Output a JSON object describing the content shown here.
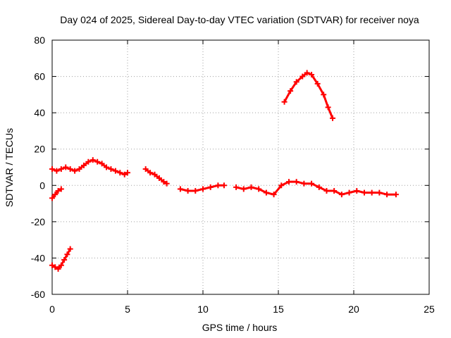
{
  "chart_data": {
    "type": "scatter",
    "title": "Day 024 of 2025, Sidereal Day-to-day VTEC variation (SDTVAR) for receiver noya",
    "xlabel": "GPS time / hours",
    "ylabel": "SDTVAR / TECUs",
    "xlim": [
      0,
      25
    ],
    "ylim": [
      -60,
      80
    ],
    "xticks": [
      0,
      5,
      10,
      15,
      20,
      25
    ],
    "yticks": [
      -60,
      -40,
      -20,
      0,
      20,
      40,
      60,
      80
    ],
    "xtick_labels": [
      "0",
      "5",
      "10",
      "15",
      "20",
      "25"
    ],
    "ytick_labels": [
      "-60",
      "-40",
      "-20",
      "0",
      "20",
      "40",
      "60",
      "80"
    ],
    "grid": true,
    "marker": "plus",
    "color": "#ff0000",
    "series": [
      {
        "name": "segment-1",
        "x": [
          0.0,
          0.2,
          0.4,
          0.6
        ],
        "y": [
          -7,
          -5,
          -3,
          -2
        ]
      },
      {
        "name": "segment-2",
        "x": [
          0.0,
          0.2,
          0.4,
          0.6,
          0.8,
          1.0,
          1.2
        ],
        "y": [
          -44,
          -45,
          -46,
          -44,
          -41,
          -38,
          -35
        ]
      },
      {
        "name": "segment-3",
        "x": [
          0.0,
          0.3,
          0.6,
          0.9,
          1.2,
          1.5,
          1.8,
          2.1,
          2.4,
          2.7,
          3.0,
          3.3,
          3.6,
          3.9,
          4.2,
          4.5,
          4.8,
          5.0
        ],
        "y": [
          9,
          8,
          9,
          10,
          9,
          8,
          9,
          11,
          13,
          14,
          13,
          12,
          10,
          9,
          8,
          7,
          6,
          7
        ]
      },
      {
        "name": "segment-4",
        "x": [
          6.2,
          6.5,
          6.8,
          7.1,
          7.4,
          7.6
        ],
        "y": [
          9,
          7,
          6,
          4,
          2,
          1
        ]
      },
      {
        "name": "segment-5",
        "x": [
          8.5,
          9.0,
          9.5,
          10.0,
          10.5,
          11.0,
          11.4
        ],
        "y": [
          -2,
          -3,
          -3,
          -2,
          -1,
          0,
          0
        ]
      },
      {
        "name": "segment-6",
        "x": [
          12.2,
          12.7,
          13.2,
          13.7,
          14.2,
          14.7,
          15.2,
          15.7,
          16.2,
          16.7,
          17.2,
          17.7,
          18.2,
          18.7,
          19.2,
          19.7,
          20.2,
          20.7,
          21.2,
          21.7,
          22.2,
          22.8
        ],
        "y": [
          -1,
          -2,
          -1,
          -2,
          -4,
          -5,
          0,
          2,
          2,
          1,
          1,
          -1,
          -3,
          -3,
          -5,
          -4,
          -3,
          -4,
          -4,
          -4,
          -5,
          -5
        ]
      },
      {
        "name": "segment-7",
        "x": [
          15.4,
          15.8,
          16.2,
          16.6,
          16.9,
          17.2,
          17.6,
          18.0,
          18.3,
          18.6
        ],
        "y": [
          46,
          52,
          57,
          60,
          62,
          61,
          56,
          50,
          43,
          37
        ]
      }
    ]
  }
}
